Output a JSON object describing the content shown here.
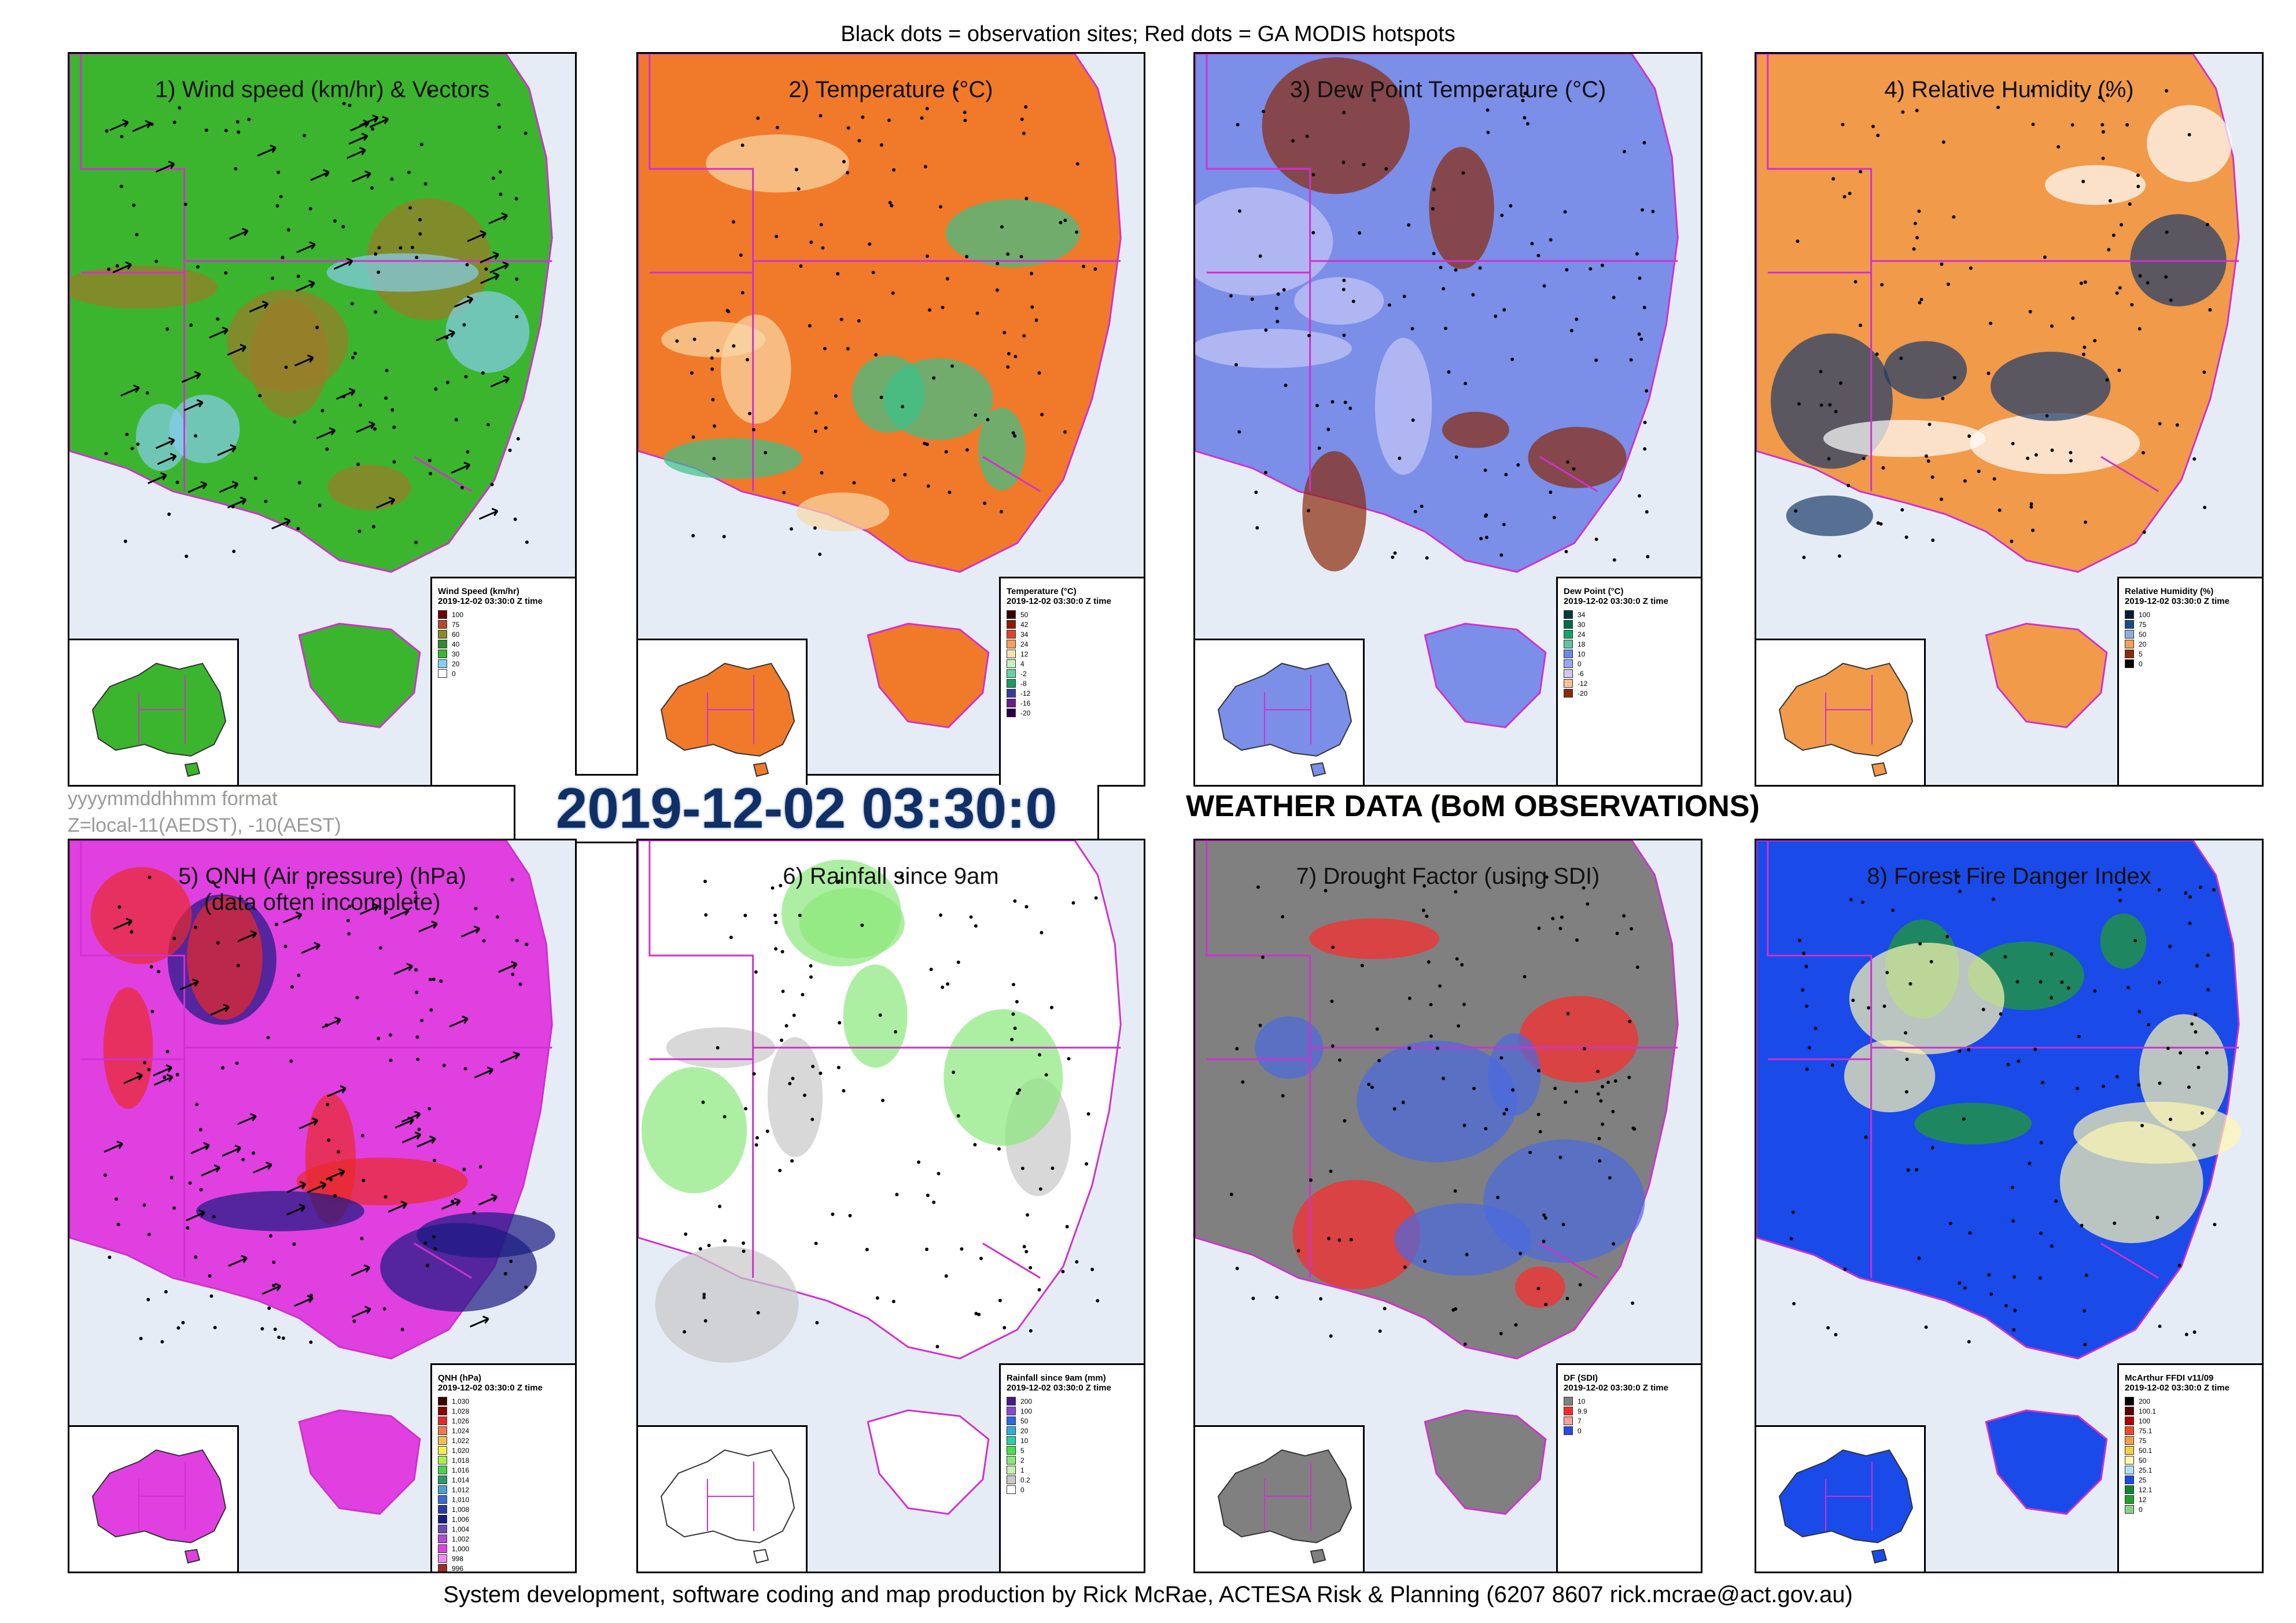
{
  "header": {
    "caption": "Black dots = observation sites; Red dots = GA MODIS hotspots"
  },
  "footer": {
    "caption": "System development, software coding and map production by Rick McRae, ACTESA Risk & Planning (6207 8607 rick.mcrae@act.gov.au)"
  },
  "format_note": {
    "line1": "yyyymmddhhmm format",
    "line2": "Z=local-11(AEDST), -10(AEST)"
  },
  "timestamp": "2019-12-02 03:30:0",
  "main_title": "WEATHER DATA (BoM OBSERVATIONS)",
  "legend_time": "2019-12-02 03:30:0 Z time",
  "panels": [
    {
      "title": "1) Wind speed (km/hr) & Vectors",
      "legend_title": "Wind Speed (km/hr)",
      "colors": {
        "base": "#3bb52e",
        "accent": "#86cdf0",
        "accent2": "#9e7a2a"
      },
      "legend": [
        {
          "label": "100",
          "color": "#6b0000"
        },
        {
          "label": "75",
          "color": "#b24a2a"
        },
        {
          "label": "60",
          "color": "#8a8a2a"
        },
        {
          "label": "40",
          "color": "#2e8b2e"
        },
        {
          "label": "30",
          "color": "#3bb52e"
        },
        {
          "label": "20",
          "color": "#86cdf0"
        },
        {
          "label": "0",
          "color": "#ffffff"
        }
      ]
    },
    {
      "title": "2) Temperature (°C)",
      "legend_title": "Temperature (°C)",
      "colors": {
        "base": "#f07a2a",
        "accent": "#f8d8a6",
        "accent2": "#3ac28a"
      },
      "legend": [
        {
          "label": "50",
          "color": "#3a0000"
        },
        {
          "label": "42",
          "color": "#8e1a00"
        },
        {
          "label": "34",
          "color": "#e0442a"
        },
        {
          "label": "24",
          "color": "#f5a05a"
        },
        {
          "label": "12",
          "color": "#f8e2b0"
        },
        {
          "label": "4",
          "color": "#c8f0c0"
        },
        {
          "label": "-2",
          "color": "#66d2a0"
        },
        {
          "label": "-8",
          "color": "#1a9a5a"
        },
        {
          "label": "-12",
          "color": "#3a3aa0"
        },
        {
          "label": "-16",
          "color": "#6a1a8a"
        },
        {
          "label": "-20",
          "color": "#2a0040"
        }
      ]
    },
    {
      "title": "3) Dew Point Temperature (°C)",
      "legend_title": "Dew Point (°C)",
      "colors": {
        "base": "#7b8ee8",
        "accent": "#c8c8f6",
        "accent2": "#8a2a0a"
      },
      "legend": [
        {
          "label": "34",
          "color": "#003a3a"
        },
        {
          "label": "30",
          "color": "#006a4a"
        },
        {
          "label": "24",
          "color": "#1aa06a"
        },
        {
          "label": "18",
          "color": "#66c2a0"
        },
        {
          "label": "10",
          "color": "#6a8ae8"
        },
        {
          "label": "0",
          "color": "#9aa6f0"
        },
        {
          "label": "-6",
          "color": "#d0c8f0"
        },
        {
          "label": "-12",
          "color": "#f0c0a0"
        },
        {
          "label": "-20",
          "color": "#8a2a0a"
        }
      ]
    },
    {
      "title": "4) Relative Humidity (%)",
      "legend_title": "Relative Humidity (%)",
      "colors": {
        "base": "#f09a4a",
        "accent": "#ffffff",
        "accent2": "#1a3a6a"
      },
      "legend": [
        {
          "label": "100",
          "color": "#0a1a3a"
        },
        {
          "label": "75",
          "color": "#1a4a8a"
        },
        {
          "label": "50",
          "color": "#8ab0d6"
        },
        {
          "label": "20",
          "color": "#f0a05a"
        },
        {
          "label": "5",
          "color": "#8a2a0a"
        },
        {
          "label": "0",
          "color": "#000000"
        }
      ]
    },
    {
      "title": "5) QNH (Air pressure) (hPa)\n(data often incomplete)",
      "legend_title": "QNH (hPa)",
      "colors": {
        "base": "#e040e0",
        "accent": "#1a1a80",
        "accent2": "#e82a2a"
      },
      "legend": [
        {
          "label": "1,030",
          "color": "#3a0000"
        },
        {
          "label": "1,028",
          "color": "#8a0000"
        },
        {
          "label": "1,026",
          "color": "#e02a2a"
        },
        {
          "label": "1,024",
          "color": "#f07a4a"
        },
        {
          "label": "1,022",
          "color": "#f0c04a"
        },
        {
          "label": "1,020",
          "color": "#f0f04a"
        },
        {
          "label": "1,018",
          "color": "#aaf04a"
        },
        {
          "label": "1,016",
          "color": "#4ad04a"
        },
        {
          "label": "1,014",
          "color": "#2a9a6a"
        },
        {
          "label": "1,012",
          "color": "#4aa0d0"
        },
        {
          "label": "1,010",
          "color": "#3a6ad0"
        },
        {
          "label": "1,008",
          "color": "#2a3aa0"
        },
        {
          "label": "1,006",
          "color": "#1a1a80"
        },
        {
          "label": "1,004",
          "color": "#6a4ab0"
        },
        {
          "label": "1,002",
          "color": "#b04ad0"
        },
        {
          "label": "1,000",
          "color": "#e040e0"
        },
        {
          "label": "998",
          "color": "#f08af0"
        },
        {
          "label": "996",
          "color": "#a02a2a"
        },
        {
          "label": "994",
          "color": "#f06a2a"
        }
      ]
    },
    {
      "title": "6) Rainfall since 9am",
      "legend_title": "Rainfall since 9am (mm)",
      "colors": {
        "base": "#ffffff",
        "accent": "#c8c8c8",
        "accent2": "#8ae87a"
      },
      "legend": [
        {
          "label": "200",
          "color": "#4a1a8a"
        },
        {
          "label": "100",
          "color": "#8a4ad0"
        },
        {
          "label": "50",
          "color": "#2a6ae0"
        },
        {
          "label": "20",
          "color": "#2ab0e0"
        },
        {
          "label": "10",
          "color": "#2ad0a0"
        },
        {
          "label": "5",
          "color": "#4ae04a"
        },
        {
          "label": "2",
          "color": "#8ae87a"
        },
        {
          "label": "1",
          "color": "#c8f0b0"
        },
        {
          "label": "0.2",
          "color": "#c8c8c8"
        },
        {
          "label": "0",
          "color": "#ffffff"
        }
      ]
    },
    {
      "title": "7) Drought Factor (using SDI)",
      "legend_title": "DF (SDI)",
      "colors": {
        "base": "#808080",
        "accent": "#ff2a2a",
        "accent2": "#4a6ae0"
      },
      "legend": [
        {
          "label": "10",
          "color": "#808080"
        },
        {
          "label": "9.9",
          "color": "#ff2a2a"
        },
        {
          "label": "7",
          "color": "#f0a0a0"
        },
        {
          "label": "0",
          "color": "#2a4ae0"
        }
      ]
    },
    {
      "title": "8) Forest Fire Danger Index",
      "legend_title": "McArthur FFDI v11/09",
      "colors": {
        "base": "#1a4ae8",
        "accent": "#22a02a",
        "accent2": "#fff8b0"
      },
      "legend": [
        {
          "label": "200",
          "color": "#000000"
        },
        {
          "label": "100.1",
          "color": "#5a0000"
        },
        {
          "label": "100",
          "color": "#b00000"
        },
        {
          "label": "75.1",
          "color": "#f04a2a"
        },
        {
          "label": "75",
          "color": "#f0a04a"
        },
        {
          "label": "50.1",
          "color": "#f0d04a"
        },
        {
          "label": "50",
          "color": "#fff8b0"
        },
        {
          "label": "25.1",
          "color": "#b0e0f0"
        },
        {
          "label": "25",
          "color": "#1a4ae8"
        },
        {
          "label": "12.1",
          "color": "#0a8a2a"
        },
        {
          "label": "12",
          "color": "#22a02a"
        },
        {
          "label": "0",
          "color": "#8ad08a"
        }
      ]
    }
  ]
}
